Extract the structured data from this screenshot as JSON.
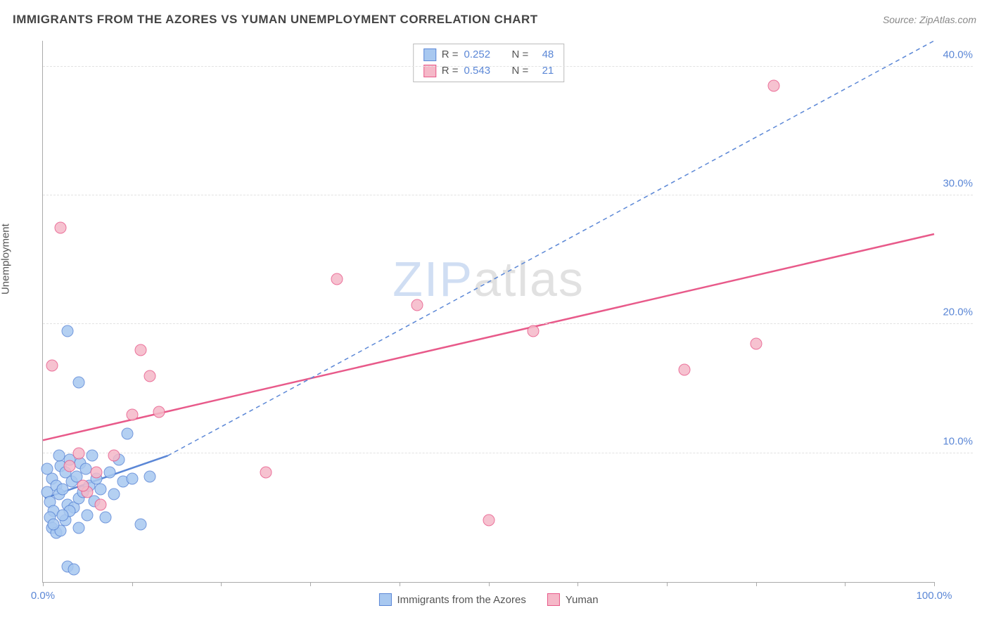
{
  "header": {
    "title": "IMMIGRANTS FROM THE AZORES VS YUMAN UNEMPLOYMENT CORRELATION CHART",
    "source": "Source: ZipAtlas.com"
  },
  "chart": {
    "type": "scatter",
    "ylabel": "Unemployment",
    "xlim": [
      0,
      100
    ],
    "ylim": [
      0,
      42
    ],
    "xticks": [
      0,
      10,
      20,
      30,
      40,
      50,
      60,
      70,
      80,
      90,
      100
    ],
    "xtick_labels": {
      "0": "0.0%",
      "100": "100.0%"
    },
    "yticks": [
      10,
      20,
      30,
      40
    ],
    "ytick_labels": {
      "10": "10.0%",
      "20": "20.0%",
      "30": "30.0%",
      "40": "40.0%"
    },
    "grid_color": "#e2e2e2",
    "axis_color": "#aaaaaa",
    "background_color": "#ffffff",
    "tick_label_color": "#5b87d6",
    "watermark": "ZIPatlas",
    "series": [
      {
        "name": "Immigrants from the Azores",
        "color_fill": "#a8c8f0",
        "color_stroke": "#5b87d6",
        "marker_radius": 8.5,
        "r": "0.252",
        "n": "48",
        "trend": {
          "x1": 0.2,
          "y1": 6.5,
          "x2": 14,
          "y2": 9.8,
          "dash_x1": 14,
          "dash_y1": 9.8,
          "dash_x2": 100,
          "dash_y2": 42,
          "width": 2.5
        },
        "points": [
          [
            0.5,
            7.0
          ],
          [
            0.8,
            6.2
          ],
          [
            1.0,
            8.0
          ],
          [
            1.2,
            5.5
          ],
          [
            1.5,
            7.5
          ],
          [
            1.8,
            6.8
          ],
          [
            2.0,
            9.0
          ],
          [
            2.2,
            7.2
          ],
          [
            2.5,
            8.5
          ],
          [
            2.8,
            6.0
          ],
          [
            3.0,
            9.5
          ],
          [
            3.2,
            7.8
          ],
          [
            3.5,
            5.8
          ],
          [
            3.8,
            8.2
          ],
          [
            4.0,
            6.5
          ],
          [
            4.2,
            9.2
          ],
          [
            4.5,
            7.0
          ],
          [
            4.8,
            8.8
          ],
          [
            5.0,
            5.2
          ],
          [
            5.2,
            7.5
          ],
          [
            5.5,
            9.8
          ],
          [
            5.8,
            6.3
          ],
          [
            6.0,
            8.0
          ],
          [
            6.5,
            7.2
          ],
          [
            7.0,
            5.0
          ],
          [
            7.5,
            8.5
          ],
          [
            8.0,
            6.8
          ],
          [
            8.5,
            9.5
          ],
          [
            9.0,
            7.8
          ],
          [
            9.5,
            11.5
          ],
          [
            10.0,
            8.0
          ],
          [
            11.0,
            4.5
          ],
          [
            12.0,
            8.2
          ],
          [
            1.0,
            4.2
          ],
          [
            1.5,
            3.8
          ],
          [
            2.0,
            4.0
          ],
          [
            0.8,
            5.0
          ],
          [
            1.2,
            4.5
          ],
          [
            2.5,
            4.8
          ],
          [
            3.0,
            5.5
          ],
          [
            0.5,
            8.8
          ],
          [
            1.8,
            9.8
          ],
          [
            2.2,
            5.2
          ],
          [
            2.8,
            1.2
          ],
          [
            3.5,
            1.0
          ],
          [
            4.0,
            4.2
          ],
          [
            2.8,
            19.5
          ],
          [
            4.0,
            15.5
          ]
        ]
      },
      {
        "name": "Yuman",
        "color_fill": "#f5b8c8",
        "color_stroke": "#e85a8a",
        "marker_radius": 8.5,
        "r": "0.543",
        "n": "21",
        "trend": {
          "x1": 0,
          "y1": 11.0,
          "x2": 100,
          "y2": 27.0,
          "width": 2.5
        },
        "points": [
          [
            1.0,
            16.8
          ],
          [
            2.0,
            27.5
          ],
          [
            3.0,
            9.0
          ],
          [
            4.0,
            10.0
          ],
          [
            5.0,
            7.0
          ],
          [
            6.0,
            8.5
          ],
          [
            8.0,
            9.8
          ],
          [
            10.0,
            13.0
          ],
          [
            11.0,
            18.0
          ],
          [
            12.0,
            16.0
          ],
          [
            13.0,
            13.2
          ],
          [
            25.0,
            8.5
          ],
          [
            33.0,
            23.5
          ],
          [
            42.0,
            21.5
          ],
          [
            50.0,
            4.8
          ],
          [
            55.0,
            19.5
          ],
          [
            72.0,
            16.5
          ],
          [
            80.0,
            18.5
          ],
          [
            82.0,
            38.5
          ],
          [
            4.5,
            7.5
          ],
          [
            6.5,
            6.0
          ]
        ]
      }
    ],
    "legend_bottom": [
      {
        "label": "Immigrants from the Azores",
        "fill": "#a8c8f0",
        "stroke": "#5b87d6"
      },
      {
        "label": "Yuman",
        "fill": "#f5b8c8",
        "stroke": "#e85a8a"
      }
    ]
  }
}
